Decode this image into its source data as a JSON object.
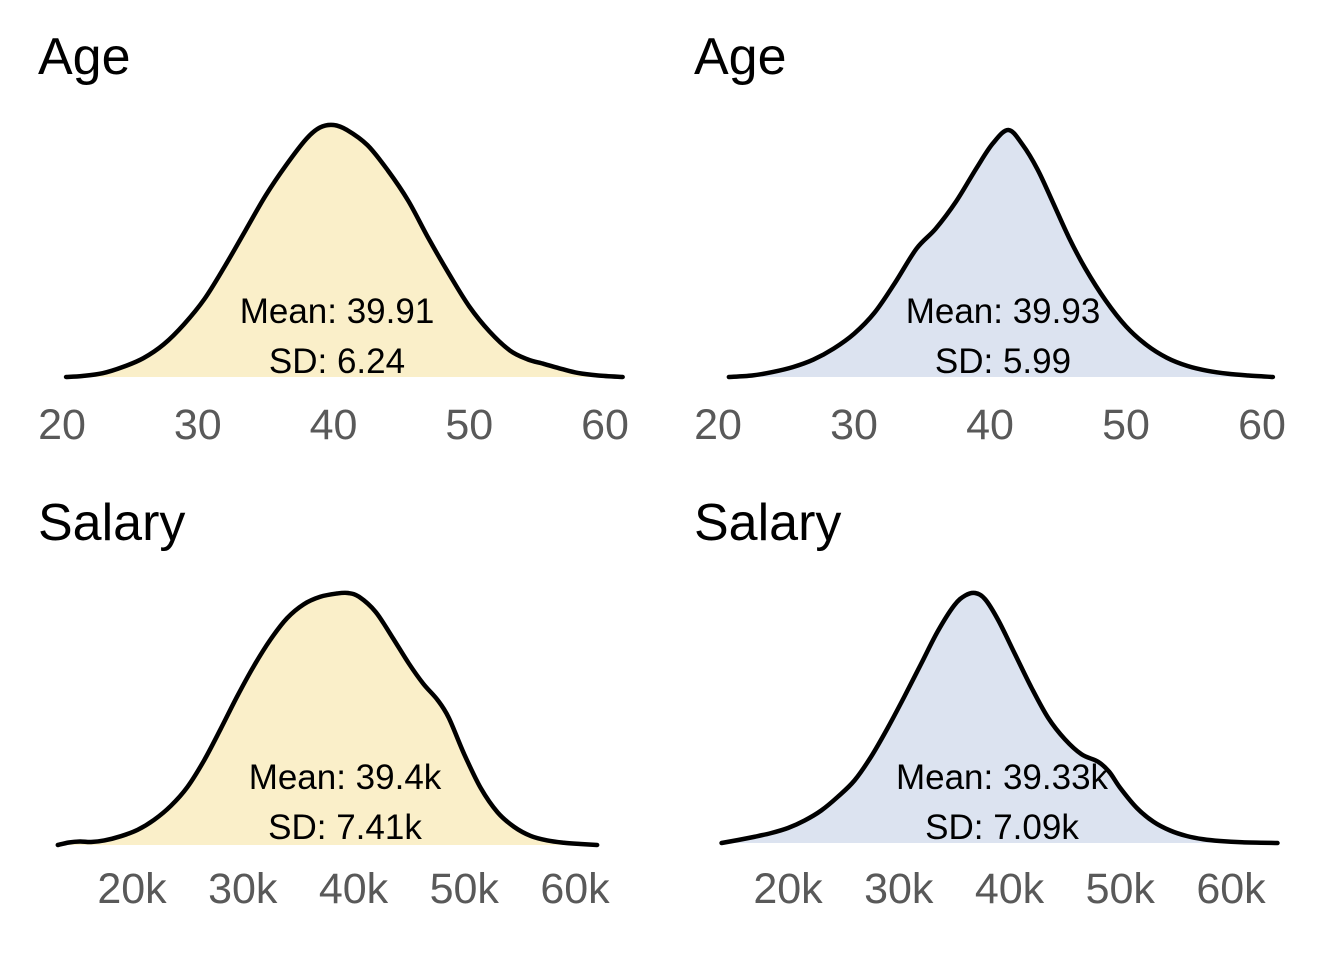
{
  "page": {
    "background": "#ffffff"
  },
  "colors": {
    "tick_label": "#595959",
    "title": "#000000",
    "annotation": "#000000",
    "curve_stroke": "#000000"
  },
  "chart_data": [
    {
      "type": "area",
      "chart_kind": "kde-density",
      "title": "Age",
      "annotations": {
        "mean_label": "Mean: 39.91",
        "sd_label": "SD: 6.24"
      },
      "stats": {
        "mean": 39.91,
        "sd": 6.24
      },
      "xlim": [
        20,
        60
      ],
      "x_tick_labels": [
        "20",
        "30",
        "40",
        "50",
        "60"
      ],
      "x_tick_values": [
        20,
        30,
        40,
        50,
        60
      ],
      "grid": false,
      "legend": "none",
      "fill_color": "#FAEFC9",
      "line_color": "#000000",
      "density_points": [
        [
          20.3,
          0
        ],
        [
          21.5,
          0.004
        ],
        [
          23,
          0.015
        ],
        [
          24.5,
          0.04
        ],
        [
          26,
          0.075
        ],
        [
          27.5,
          0.13
        ],
        [
          29,
          0.21
        ],
        [
          30.5,
          0.31
        ],
        [
          32,
          0.44
        ],
        [
          33.5,
          0.58
        ],
        [
          35,
          0.72
        ],
        [
          36.5,
          0.84
        ],
        [
          38,
          0.945
        ],
        [
          39,
          0.99
        ],
        [
          40,
          1.0
        ],
        [
          41,
          0.98
        ],
        [
          42.5,
          0.92
        ],
        [
          44,
          0.82
        ],
        [
          45.5,
          0.7
        ],
        [
          47,
          0.55
        ],
        [
          48.5,
          0.41
        ],
        [
          50,
          0.28
        ],
        [
          51.5,
          0.18
        ],
        [
          53,
          0.105
        ],
        [
          54.3,
          0.07
        ],
        [
          55.5,
          0.052
        ],
        [
          56.8,
          0.032
        ],
        [
          58,
          0.016
        ],
        [
          59.5,
          0.006
        ],
        [
          61.3,
          0
        ]
      ]
    },
    {
      "type": "area",
      "chart_kind": "kde-density",
      "title": "Age",
      "annotations": {
        "mean_label": "Mean: 39.93",
        "sd_label": "SD: 5.99"
      },
      "stats": {
        "mean": 39.93,
        "sd": 5.99
      },
      "xlim": [
        20,
        60
      ],
      "x_tick_labels": [
        "20",
        "30",
        "40",
        "50",
        "60"
      ],
      "x_tick_values": [
        20,
        30,
        40,
        50,
        60
      ],
      "grid": false,
      "legend": "none",
      "fill_color": "#DCE3F0",
      "line_color": "#000000",
      "density_points": [
        [
          20.8,
          0
        ],
        [
          22.5,
          0.006
        ],
        [
          24,
          0.02
        ],
        [
          25.5,
          0.04
        ],
        [
          27,
          0.07
        ],
        [
          28.5,
          0.115
        ],
        [
          30,
          0.175
        ],
        [
          31.5,
          0.26
        ],
        [
          33,
          0.38
        ],
        [
          34.6,
          0.52
        ],
        [
          36,
          0.6
        ],
        [
          37.5,
          0.71
        ],
        [
          39,
          0.845
        ],
        [
          40.2,
          0.945
        ],
        [
          41.35,
          1.0
        ],
        [
          42.4,
          0.94
        ],
        [
          43.5,
          0.84
        ],
        [
          44.6,
          0.71
        ],
        [
          45.8,
          0.565
        ],
        [
          47,
          0.44
        ],
        [
          48.5,
          0.31
        ],
        [
          50,
          0.205
        ],
        [
          51.5,
          0.13
        ],
        [
          53,
          0.078
        ],
        [
          54.5,
          0.045
        ],
        [
          56,
          0.025
        ],
        [
          57.5,
          0.013
        ],
        [
          59,
          0.006
        ],
        [
          60.8,
          0
        ]
      ]
    },
    {
      "type": "area",
      "chart_kind": "kde-density",
      "title": "Salary",
      "annotations": {
        "mean_label": "Mean: 39.4k",
        "sd_label": "SD: 7.41k"
      },
      "stats": {
        "mean": "39.4k",
        "sd": "7.41k"
      },
      "xlim": [
        20,
        60
      ],
      "x_tick_labels": [
        "20k",
        "30k",
        "40k",
        "50k",
        "60k"
      ],
      "x_tick_values": [
        20,
        30,
        40,
        50,
        60
      ],
      "grid": false,
      "legend": "none",
      "fill_color": "#FAEFC9",
      "line_color": "#000000",
      "density_points": [
        [
          13.3,
          0
        ],
        [
          14.3,
          0.01
        ],
        [
          15.3,
          0.014
        ],
        [
          16.3,
          0.012
        ],
        [
          17.5,
          0.018
        ],
        [
          19,
          0.035
        ],
        [
          20.5,
          0.06
        ],
        [
          22,
          0.1
        ],
        [
          23.5,
          0.155
        ],
        [
          25,
          0.23
        ],
        [
          26.5,
          0.335
        ],
        [
          28,
          0.46
        ],
        [
          29.5,
          0.59
        ],
        [
          31,
          0.71
        ],
        [
          32.5,
          0.815
        ],
        [
          34,
          0.9
        ],
        [
          35.5,
          0.955
        ],
        [
          37,
          0.985
        ],
        [
          38.5,
          0.998
        ],
        [
          39.5,
          1.0
        ],
        [
          40.5,
          0.985
        ],
        [
          42,
          0.925
        ],
        [
          43.5,
          0.825
        ],
        [
          45,
          0.72
        ],
        [
          46.3,
          0.64
        ],
        [
          47.6,
          0.575
        ],
        [
          48.6,
          0.505
        ],
        [
          50,
          0.36
        ],
        [
          51.5,
          0.225
        ],
        [
          53,
          0.13
        ],
        [
          54.5,
          0.072
        ],
        [
          56,
          0.036
        ],
        [
          57.5,
          0.018
        ],
        [
          59,
          0.009
        ],
        [
          60.5,
          0.004
        ],
        [
          62,
          0
        ]
      ]
    },
    {
      "type": "area",
      "chart_kind": "kde-density",
      "title": "Salary",
      "annotations": {
        "mean_label": "Mean: 39.33k",
        "sd_label": "SD: 7.09k"
      },
      "stats": {
        "mean": "39.33k",
        "sd": "7.09k"
      },
      "xlim": [
        20,
        60
      ],
      "x_tick_labels": [
        "20k",
        "30k",
        "40k",
        "50k",
        "60k"
      ],
      "x_tick_values": [
        20,
        30,
        40,
        50,
        60
      ],
      "grid": false,
      "legend": "none",
      "fill_color": "#DCE3F0",
      "line_color": "#000000",
      "density_points": [
        [
          14,
          0
        ],
        [
          15.5,
          0.012
        ],
        [
          17,
          0.025
        ],
        [
          18.5,
          0.04
        ],
        [
          20,
          0.06
        ],
        [
          21.5,
          0.09
        ],
        [
          23,
          0.13
        ],
        [
          24.5,
          0.185
        ],
        [
          26,
          0.25
        ],
        [
          27.5,
          0.345
        ],
        [
          29,
          0.46
        ],
        [
          30.5,
          0.585
        ],
        [
          32,
          0.715
        ],
        [
          33.5,
          0.845
        ],
        [
          35,
          0.95
        ],
        [
          36,
          0.99
        ],
        [
          36.9,
          1.0
        ],
        [
          37.8,
          0.975
        ],
        [
          39,
          0.89
        ],
        [
          40.5,
          0.755
        ],
        [
          42,
          0.62
        ],
        [
          43.5,
          0.5
        ],
        [
          45,
          0.415
        ],
        [
          46.5,
          0.355
        ],
        [
          48,
          0.325
        ],
        [
          49,
          0.285
        ],
        [
          50,
          0.22
        ],
        [
          51.5,
          0.14
        ],
        [
          53,
          0.085
        ],
        [
          54.5,
          0.05
        ],
        [
          56,
          0.028
        ],
        [
          57.5,
          0.015
        ],
        [
          59,
          0.008
        ],
        [
          61,
          0.003
        ],
        [
          64.2,
          0
        ]
      ]
    }
  ]
}
